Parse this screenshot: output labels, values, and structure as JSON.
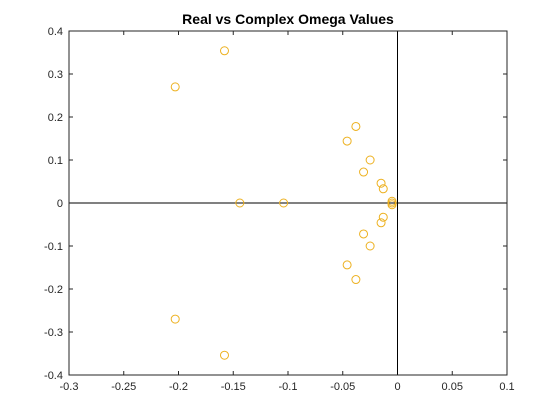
{
  "chart_data": {
    "type": "scatter",
    "title": "Real vs Complex Omega Values",
    "xlabel": "",
    "ylabel": "",
    "xlim": [
      -0.3,
      0.1
    ],
    "ylim": [
      -0.4,
      0.4
    ],
    "xticks": [
      -0.3,
      -0.25,
      -0.2,
      -0.15,
      -0.1,
      -0.05,
      0,
      0.05,
      0.1
    ],
    "xtick_labels": [
      "-0.3",
      "-0.25",
      "-0.2",
      "-0.15",
      "-0.1",
      "-0.05",
      "0",
      "0.05",
      "0.1"
    ],
    "yticks": [
      -0.4,
      -0.3,
      -0.2,
      -0.1,
      0,
      0.1,
      0.2,
      0.3,
      0.4
    ],
    "ytick_labels": [
      "-0.4",
      "-0.3",
      "-0.2",
      "-0.1",
      "0",
      "0.1",
      "0.2",
      "0.3",
      "0.4"
    ],
    "grid": false,
    "reference_lines": [
      "x=0",
      "y=0"
    ],
    "marker": "open-circle",
    "marker_color": "#EDB120",
    "series": [
      {
        "x": [
          -0.158,
          -0.203,
          -0.038,
          -0.046,
          -0.025,
          -0.031,
          -0.015,
          -0.013,
          -0.005,
          -0.144,
          -0.104,
          -0.005,
          -0.005,
          -0.013,
          -0.015,
          -0.031,
          -0.025,
          -0.046,
          -0.038,
          -0.203,
          -0.158
        ],
        "y": [
          0.354,
          0.27,
          0.178,
          0.144,
          0.1,
          0.072,
          0.046,
          0.033,
          0.004,
          0.0,
          0.0,
          0.0,
          -0.004,
          -0.033,
          -0.046,
          -0.072,
          -0.1,
          -0.144,
          -0.178,
          -0.27,
          -0.354
        ]
      }
    ]
  }
}
